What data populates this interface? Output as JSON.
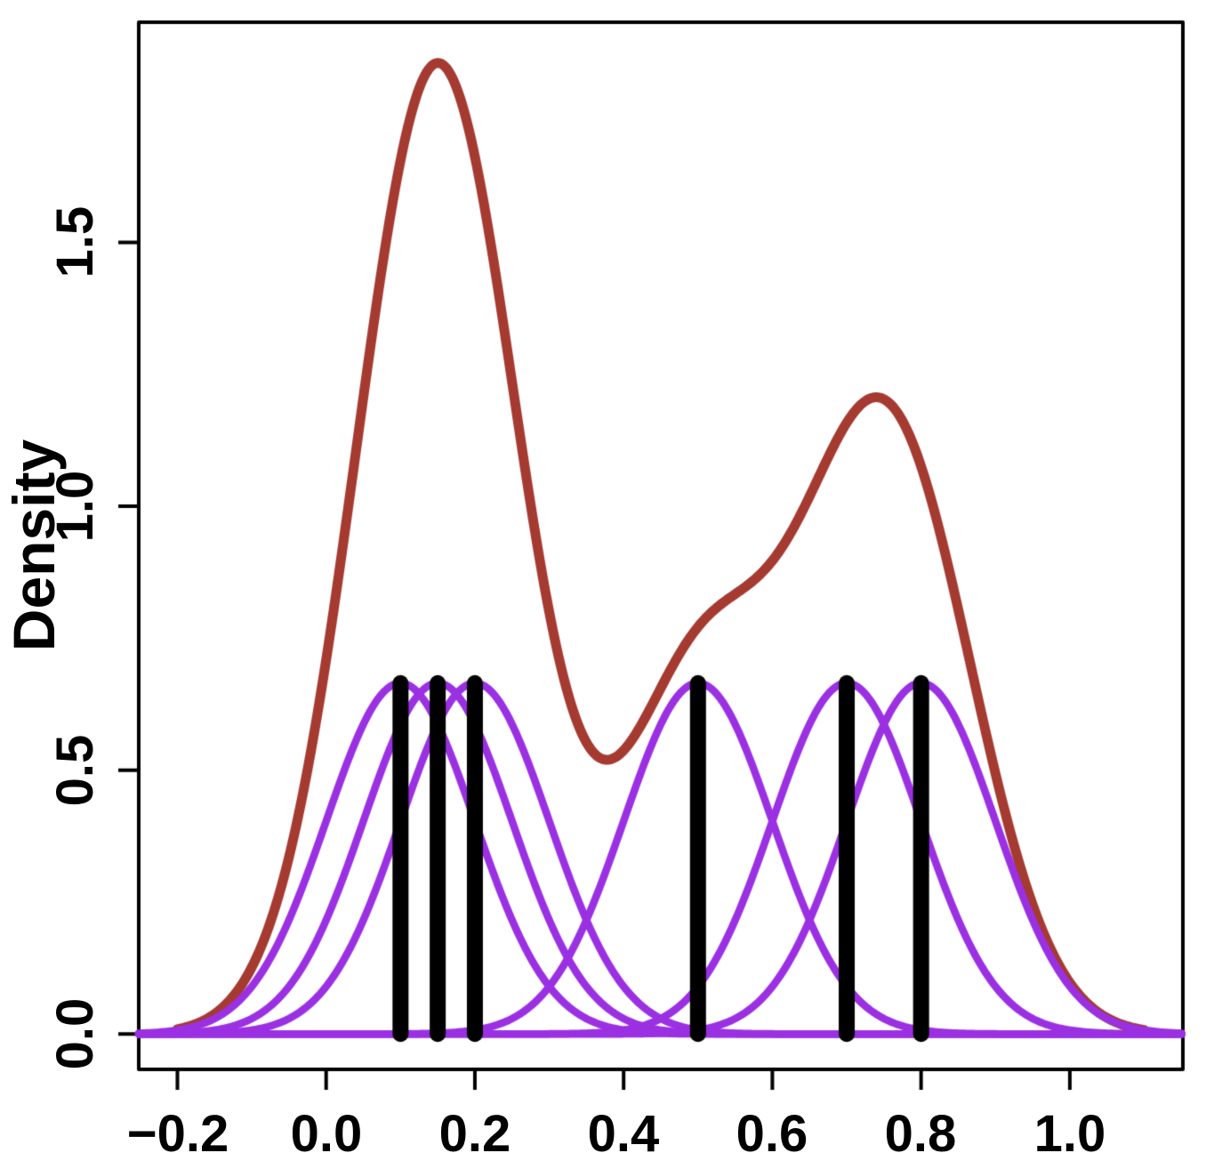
{
  "figure": {
    "background_color": "#FFFFFF",
    "axis_color": "#000000"
  },
  "chart_data": {
    "type": "line",
    "subtype": "kernel-density-estimate",
    "title": "",
    "xlabel": "",
    "ylabel": "Density",
    "grid": "off",
    "legend": "none",
    "xlim": [
      -0.252,
      1.152
    ],
    "ylim": [
      -0.067,
      1.917
    ],
    "x_ticks": [
      -0.2,
      0.0,
      0.2,
      0.4,
      0.6,
      0.8,
      1.0
    ],
    "x_tick_labels": [
      "−0.2",
      "0.0",
      "0.2",
      "0.4",
      "0.6",
      "0.8",
      "1.0"
    ],
    "y_ticks": [
      0.0,
      0.5,
      1.0,
      1.5
    ],
    "y_tick_labels": [
      "0.0",
      "0.5",
      "1.0",
      "1.5"
    ],
    "data_points": [
      0.1,
      0.15,
      0.2,
      0.5,
      0.7,
      0.8
    ],
    "n_points": 6,
    "bandwidth": 0.1,
    "kernel_peak_density": 0.665,
    "density_curve_range": [
      -0.2,
      1.1
    ],
    "density_curve_peaks": [
      {
        "x": 0.146,
        "y": 1.845
      },
      {
        "x": 0.73,
        "y": 1.204
      }
    ],
    "density_curve_valley": {
      "x": 0.38,
      "y": 0.52
    },
    "series": [
      {
        "name": "kde-sum-curve",
        "color": "#A53A31",
        "line_width": 11
      },
      {
        "name": "component-kernels",
        "color": "#9B30E3",
        "line_width": 8.5,
        "count": 6
      },
      {
        "name": "data-point-segments",
        "color": "#000000",
        "line_width": 18,
        "segment_top": 0.665
      }
    ]
  }
}
